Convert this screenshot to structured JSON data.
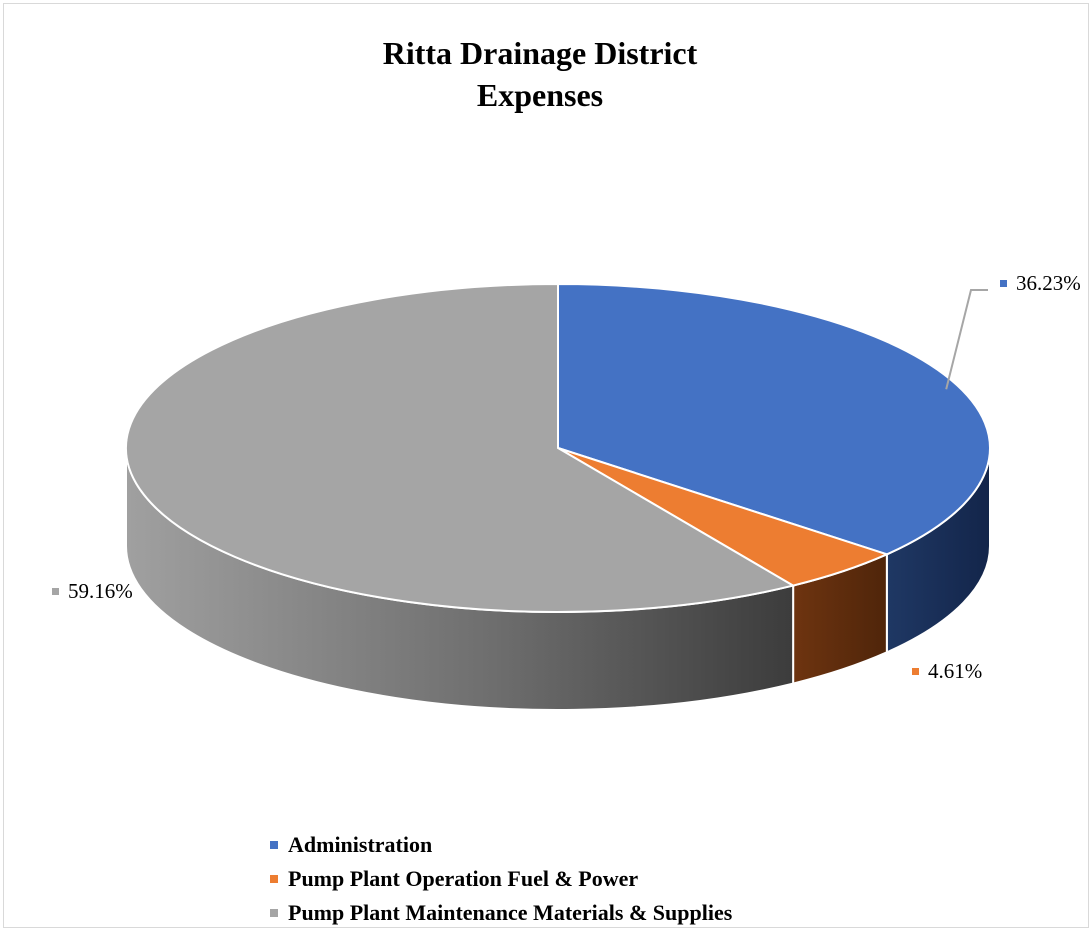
{
  "chart_data": {
    "type": "pie",
    "style": "3d",
    "title_lines": [
      "Ritta Drainage District",
      "Expenses"
    ],
    "slices": [
      {
        "name": "Administration",
        "value": 36.23,
        "label": "36.23%",
        "color": "#4472c4",
        "side_color": "#1f3864"
      },
      {
        "name": "Pump Plant Operation Fuel & Power",
        "value": 4.61,
        "label": "4.61%",
        "color": "#ed7d31",
        "side_color": "#843c0c"
      },
      {
        "name": "Pump Plant Maintenance Materials & Supplies",
        "value": 59.16,
        "label": "59.16%",
        "color": "#a5a5a5",
        "side_color": "#7f7f7f"
      }
    ],
    "legend_placement": "bottom",
    "label_color": "#000000",
    "leader_line_color": "#a6a6a6"
  }
}
